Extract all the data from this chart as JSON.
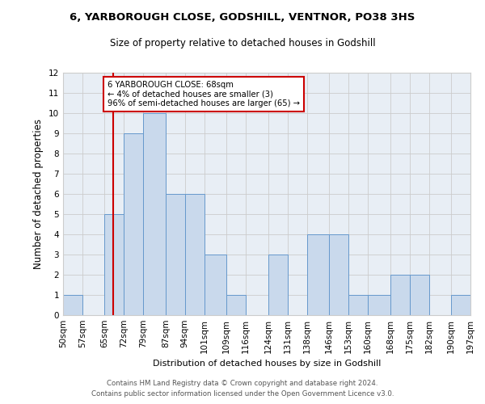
{
  "title": "6, YARBOROUGH CLOSE, GODSHILL, VENTNOR, PO38 3HS",
  "subtitle": "Size of property relative to detached houses in Godshill",
  "xlabel": "Distribution of detached houses by size in Godshill",
  "ylabel": "Number of detached properties",
  "bin_edges": [
    50,
    57,
    65,
    72,
    79,
    87,
    94,
    101,
    109,
    116,
    124,
    131,
    138,
    146,
    153,
    160,
    168,
    175,
    182,
    190,
    197
  ],
  "bar_heights": [
    1,
    0,
    5,
    9,
    10,
    6,
    6,
    3,
    1,
    0,
    3,
    0,
    4,
    4,
    1,
    1,
    2,
    2,
    0,
    1
  ],
  "bar_color": "#c9d9ec",
  "bar_edge_color": "#6699cc",
  "property_size": 68,
  "red_line_color": "#cc0000",
  "annotation_text": "6 YARBOROUGH CLOSE: 68sqm\n← 4% of detached houses are smaller (3)\n96% of semi-detached houses are larger (65) →",
  "annotation_box_color": "#ffffff",
  "annotation_box_edge": "#cc0000",
  "ylim": [
    0,
    12
  ],
  "yticks": [
    0,
    1,
    2,
    3,
    4,
    5,
    6,
    7,
    8,
    9,
    10,
    11,
    12
  ],
  "background_color": "#ffffff",
  "grid_color": "#cccccc",
  "footer_line1": "Contains HM Land Registry data © Crown copyright and database right 2024.",
  "footer_line2": "Contains public sector information licensed under the Open Government Licence v3.0.",
  "tick_labels": [
    "50sqm",
    "57sqm",
    "65sqm",
    "72sqm",
    "79sqm",
    "87sqm",
    "94sqm",
    "101sqm",
    "109sqm",
    "116sqm",
    "124sqm",
    "131sqm",
    "138sqm",
    "146sqm",
    "153sqm",
    "160sqm",
    "168sqm",
    "175sqm",
    "182sqm",
    "190sqm",
    "197sqm"
  ]
}
